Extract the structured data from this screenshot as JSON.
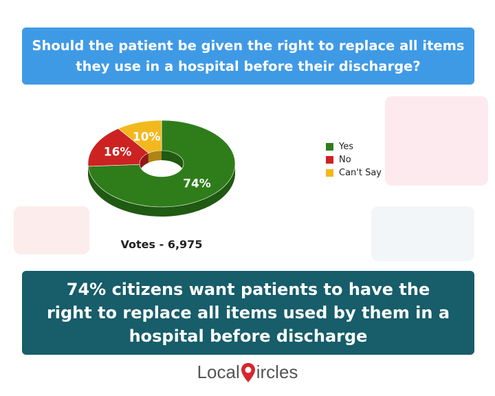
{
  "question": "Should the patient be given the right to replace all items they use in a hospital before their discharge?",
  "chart_data": {
    "type": "pie",
    "variant": "donut",
    "categories": [
      "Yes",
      "No",
      "Can't Say"
    ],
    "values": [
      74,
      16,
      10
    ],
    "value_labels": [
      "74%",
      "16%",
      "10%"
    ],
    "colors": [
      "#2e7d1a",
      "#cc2222",
      "#f2b81e"
    ],
    "legend_position": "right"
  },
  "votes_label": "Votes - 6,975",
  "conclusion": "74% citizens want patients to have the right to replace all items used by them in a hospital before discharge",
  "logo": {
    "part1": "Local",
    "part2": "ircles",
    "pin_color": "#d6262b"
  }
}
